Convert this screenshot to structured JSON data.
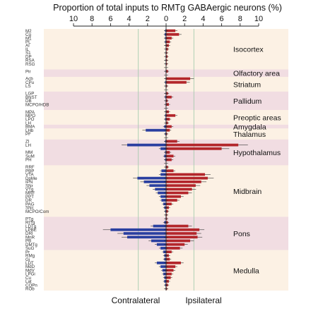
{
  "chart_data": {
    "type": "bar",
    "orientation": "horizontal",
    "diverging": true,
    "title": "Proportion of total inputs to RMTg GABAergic neurons (%)",
    "xlim": [
      -10,
      10
    ],
    "x_tick_labels": [
      "10",
      "8",
      "6",
      "4",
      "2",
      "0",
      "2",
      "4",
      "6",
      "8",
      "10"
    ],
    "x_tick_values": [
      -10,
      -8,
      -6,
      -4,
      -2,
      0,
      2,
      4,
      6,
      8,
      10
    ],
    "reference_lines": [
      -3,
      3
    ],
    "left_label": "Contralateral",
    "right_label": "Ipsilateral",
    "series": [
      {
        "name": "Contralateral",
        "color": "#2a3fa0"
      },
      {
        "name": "Ipsilateral",
        "color": "#b3262b"
      }
    ],
    "categories": [
      "M2",
      "Cg",
      "M1",
      "PL",
      "AI",
      "IL",
      "S1",
      "DP",
      "RSA",
      "RSG",
      "",
      "Pir",
      "",
      "Acb",
      "CPu",
      "LS",
      "",
      "LGP",
      "BNST",
      "DB",
      "MCPO/HDB",
      "",
      "MPA",
      "MPO",
      "LPO",
      "LH",
      "BMA",
      "LHb",
      "PF",
      "",
      "ZI",
      "LH",
      "",
      "MM",
      "SuM",
      "PH",
      "",
      "RRF",
      "PBP",
      "VTA",
      "DpMe",
      "IPN",
      "SNr",
      "VTg",
      "MRF",
      "PPT",
      "DR",
      "PAG",
      "SNc",
      "MCPO/Com",
      "",
      "PTg",
      "RtTg",
      "LDTg",
      "LPBE",
      "DRI",
      "MnR",
      "PB",
      "DMTg",
      "SuG",
      "Pr",
      "RMg",
      "Gi",
      "LDT",
      "MdD",
      "MdV",
      "LPGi",
      "Cu",
      "Lat",
      "COPn",
      "ROb"
    ],
    "ipsilateral": [
      1.0,
      1.4,
      0.6,
      0.4,
      0.3,
      0.2,
      0.1,
      0.15,
      0.1,
      0.1,
      0,
      0.2,
      0,
      2.6,
      2.2,
      0.1,
      0,
      0.2,
      0.6,
      0.15,
      0.3,
      0,
      0.3,
      1.0,
      0.4,
      0.2,
      0.6,
      0.4,
      0.1,
      0,
      1.2,
      7.8,
      6.0,
      0.4,
      0.8,
      0.6,
      0,
      0.2,
      0.8,
      4.2,
      4.5,
      3.8,
      3.2,
      2.8,
      2.4,
      1.6,
      1.2,
      0.6,
      0.3,
      0.2,
      0.1,
      0.1,
      0.2,
      2.4,
      3.6,
      3.3,
      3.4,
      2.6,
      2.0,
      1.5,
      0.6,
      0.3,
      0.4,
      1.6,
      1.0,
      0.8,
      0.6,
      0.5,
      0.3,
      0.2,
      0.1
    ],
    "contralateral": [
      0.1,
      0.15,
      0.1,
      0.1,
      0.05,
      0.05,
      0.05,
      0.05,
      0.05,
      0.05,
      0,
      0.05,
      0,
      0.05,
      0.1,
      0.05,
      0,
      0.05,
      0.1,
      0.05,
      0.05,
      0,
      0.05,
      0.1,
      0.1,
      0.05,
      0.2,
      2.2,
      0.1,
      0,
      0.1,
      4.2,
      0.6,
      0.1,
      0.2,
      0.1,
      0,
      0.05,
      0.5,
      0.6,
      3.1,
      2.4,
      1.8,
      1.2,
      0.9,
      0.6,
      0.5,
      0.3,
      0.2,
      0.1,
      0.05,
      0.05,
      0.2,
      1.4,
      6.0,
      4.6,
      4.2,
      1.6,
      1.0,
      0.6,
      0.3,
      0.2,
      0.2,
      1.0,
      0.6,
      0.4,
      0.3,
      0.2,
      0.2,
      0.1,
      0.05
    ],
    "regions": [
      {
        "label": "Isocortex",
        "start": 0,
        "end": 10,
        "shade": false
      },
      {
        "label": "Olfactory area",
        "start": 11,
        "end": 12,
        "shade": true
      },
      {
        "label": "Striatum",
        "start": 13,
        "end": 16,
        "shade": false
      },
      {
        "label": "Pallidum",
        "start": 17,
        "end": 21,
        "shade": true
      },
      {
        "label": "Preoptic areas",
        "start": 22,
        "end": 25,
        "shade": false
      },
      {
        "label": "Amygdala",
        "start": 26,
        "end": 26,
        "shade": true
      },
      {
        "label": "Thalamus",
        "start": 27,
        "end": 29,
        "shade": false
      },
      {
        "label": "Hypothalamus",
        "start": 30,
        "end": 36,
        "shade": true
      },
      {
        "label": "Midbrain",
        "start": 37,
        "end": 50,
        "shade": false
      },
      {
        "label": "Pons",
        "start": 51,
        "end": 59,
        "shade": true
      },
      {
        "label": "Medulla",
        "start": 60,
        "end": 70,
        "shade": false
      }
    ]
  }
}
